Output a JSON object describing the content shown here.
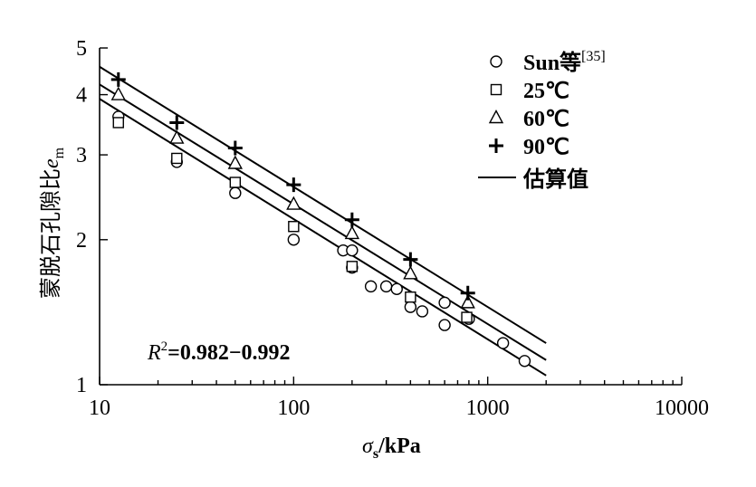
{
  "chart_data": {
    "type": "scatter",
    "xscale": "log",
    "yscale": "log",
    "xlim": [
      10,
      10000
    ],
    "ylim": [
      1,
      5
    ],
    "xlabel_symbol": "σ",
    "xlabel_sub": "s",
    "xlabel_unit": "/kPa",
    "ylabel_text": "蒙脱石孔隙比",
    "ylabel_symbol": "e",
    "ylabel_sub": "m",
    "x_ticks": [
      "10",
      "100",
      "1000",
      "10000"
    ],
    "y_ticks": [
      "1",
      "2",
      "3",
      "4",
      "5"
    ],
    "annotation": {
      "var": "R",
      "sup": "2",
      "text": "=0.982−0.992"
    },
    "legend": {
      "placement": "top-right",
      "entries": [
        {
          "marker": "circle",
          "label": "Sun等",
          "sup": "[35]"
        },
        {
          "marker": "square",
          "label": "25℃",
          "sup": ""
        },
        {
          "marker": "triangle",
          "label": "60℃",
          "sup": ""
        },
        {
          "marker": "plus",
          "label": "90℃",
          "sup": ""
        },
        {
          "marker": "line",
          "label": "估算值",
          "sup": ""
        }
      ]
    },
    "series": [
      {
        "name": "Sun等[35]",
        "marker": "circle",
        "points": [
          [
            12.5,
            3.6
          ],
          [
            25,
            2.9
          ],
          [
            50,
            2.5
          ],
          [
            100,
            2.0
          ],
          [
            180,
            1.9
          ],
          [
            200,
            1.9
          ],
          [
            200,
            1.75
          ],
          [
            250,
            1.6
          ],
          [
            300,
            1.6
          ],
          [
            340,
            1.58
          ],
          [
            400,
            1.45
          ],
          [
            460,
            1.42
          ],
          [
            600,
            1.48
          ],
          [
            600,
            1.33
          ],
          [
            800,
            1.37
          ],
          [
            1200,
            1.22
          ],
          [
            1550,
            1.12
          ]
        ]
      },
      {
        "name": "25℃",
        "marker": "square",
        "points": [
          [
            12.5,
            3.5
          ],
          [
            25,
            2.95
          ],
          [
            50,
            2.63
          ],
          [
            100,
            2.13
          ],
          [
            200,
            1.76
          ],
          [
            400,
            1.52
          ],
          [
            780,
            1.38
          ]
        ]
      },
      {
        "name": "60℃",
        "marker": "triangle",
        "points": [
          [
            12.5,
            4.0
          ],
          [
            25,
            3.25
          ],
          [
            50,
            2.88
          ],
          [
            100,
            2.37
          ],
          [
            200,
            2.06
          ],
          [
            400,
            1.7
          ],
          [
            790,
            1.48
          ]
        ]
      },
      {
        "name": "90℃",
        "marker": "plus",
        "points": [
          [
            12.5,
            4.3
          ],
          [
            25,
            3.5
          ],
          [
            50,
            3.1
          ],
          [
            100,
            2.6
          ],
          [
            200,
            2.2
          ],
          [
            400,
            1.82
          ],
          [
            790,
            1.55
          ]
        ]
      }
    ],
    "fit_lines": [
      {
        "name": "估算值",
        "from": [
          10,
          4.57
        ],
        "to": [
          2000,
          1.22
        ]
      },
      {
        "name": "估算值",
        "from": [
          10,
          4.2
        ],
        "to": [
          2000,
          1.125
        ]
      },
      {
        "name": "估算值",
        "from": [
          10,
          3.92
        ],
        "to": [
          2000,
          1.045
        ]
      }
    ]
  }
}
